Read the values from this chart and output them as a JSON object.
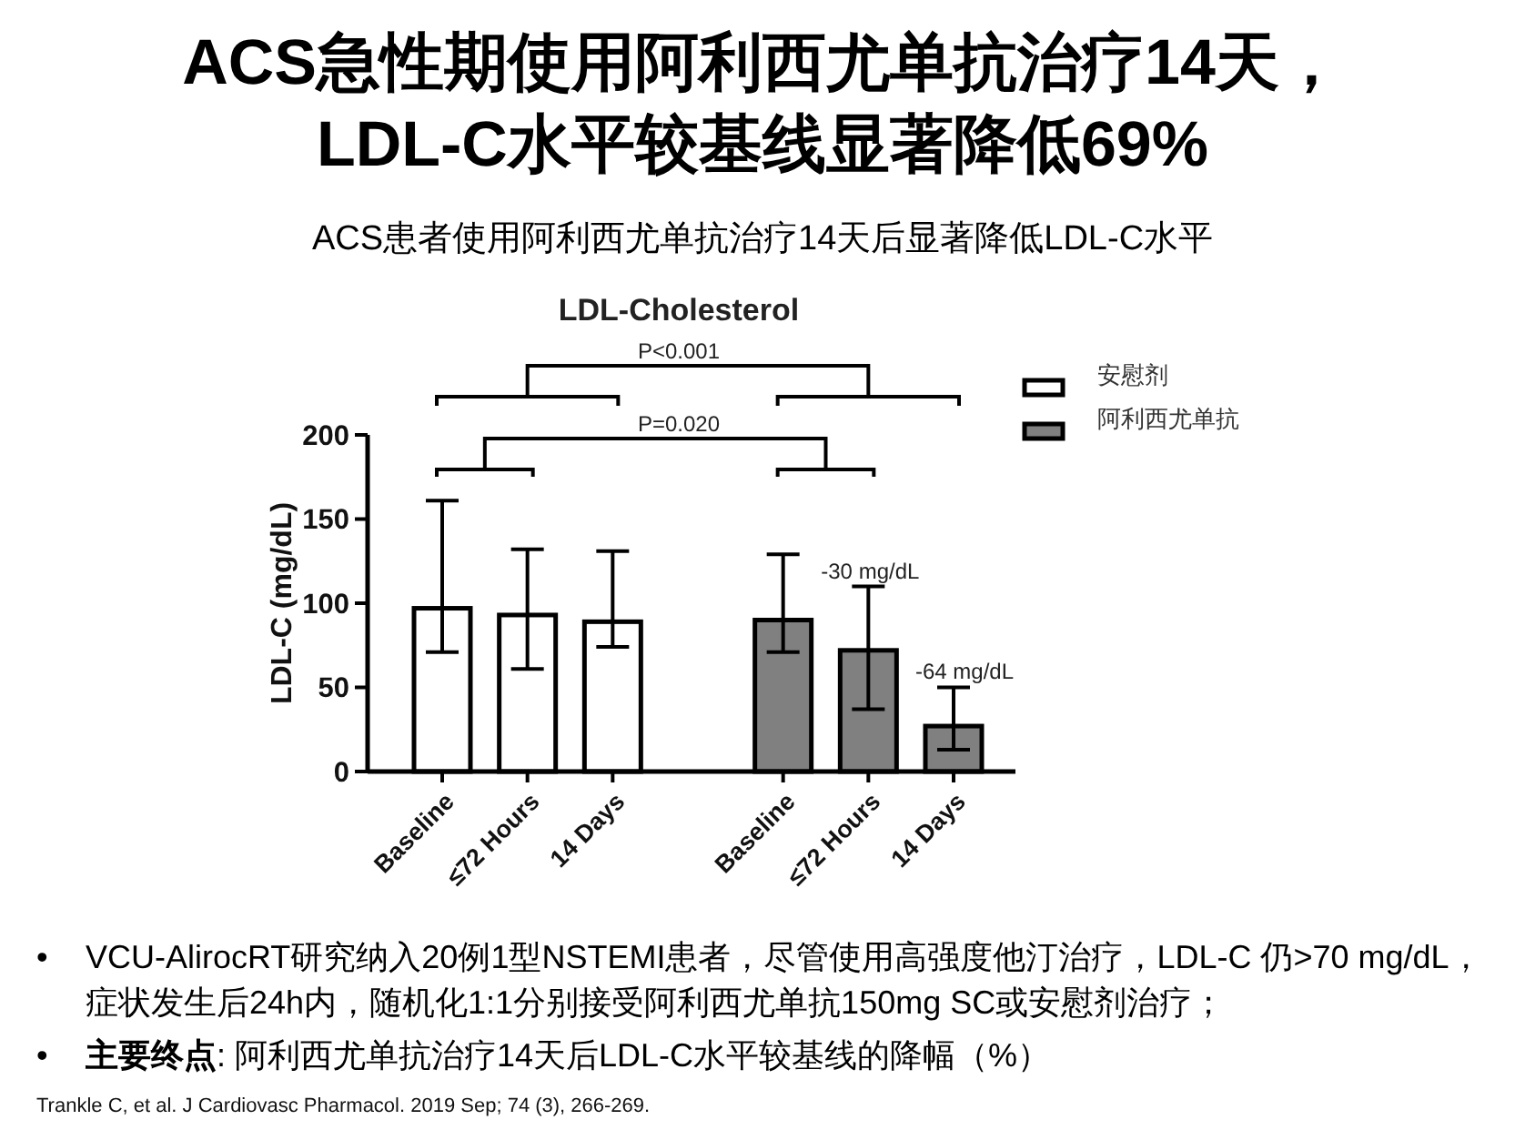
{
  "chart_data": {
    "type": "bar",
    "title": "ACS急性期使用阿利西尤单抗治疗14天，LDL-C水平较基线显著降低69%",
    "subtitle": "ACS患者使用阿利西尤单抗治疗14天后显著降低LDL-C水平",
    "ylabel": "LDL-C (mg/dL)",
    "categories": [
      "Baseline",
      "≤72 Hours",
      "14 Days",
      null,
      "Baseline",
      "≤72 Hours",
      "14 Days"
    ],
    "series": [
      {
        "name": "安慰剂",
        "color": "#ffffff",
        "values": [
          97,
          93,
          89,
          null,
          null,
          null,
          null
        ],
        "errors": [
          [
            71,
            161
          ],
          [
            61,
            132
          ],
          [
            74,
            131
          ],
          null,
          null,
          null,
          null
        ]
      },
      {
        "name": "阿利西尤单抗",
        "color": "#808080",
        "values": [
          null,
          null,
          null,
          null,
          90,
          72,
          27
        ],
        "errors": [
          null,
          null,
          null,
          null,
          [
            71,
            129
          ],
          [
            37,
            110
          ],
          [
            13,
            50
          ]
        ]
      }
    ],
    "ylim": [
      0,
      200
    ],
    "yticks": [
      0,
      50,
      100,
      150,
      200
    ],
    "legend": "top right",
    "annotations": [
      "LDL-Cholesterol",
      "P<0.001",
      "P=0.020",
      "-30 mg/dL",
      "-64 mg/dL",
      "• VCU-AlirocRT研究纳入20例1型NSTEMI患者，尽管使用高强度他汀治疗，LDL-C 仍>70 mg/dL，症状发生后24h内，随机化1:1分别接受阿利西尤单抗150mg SC或安慰剂治疗；",
      "• 主要终点: 阿利西尤单抗治疗14天后LDL-C水平较基线的降幅（%）",
      "Trankle C, et al. J Cardiovasc Pharmacol. 2019 Sep; 74 (3), 266-269."
    ]
  }
}
